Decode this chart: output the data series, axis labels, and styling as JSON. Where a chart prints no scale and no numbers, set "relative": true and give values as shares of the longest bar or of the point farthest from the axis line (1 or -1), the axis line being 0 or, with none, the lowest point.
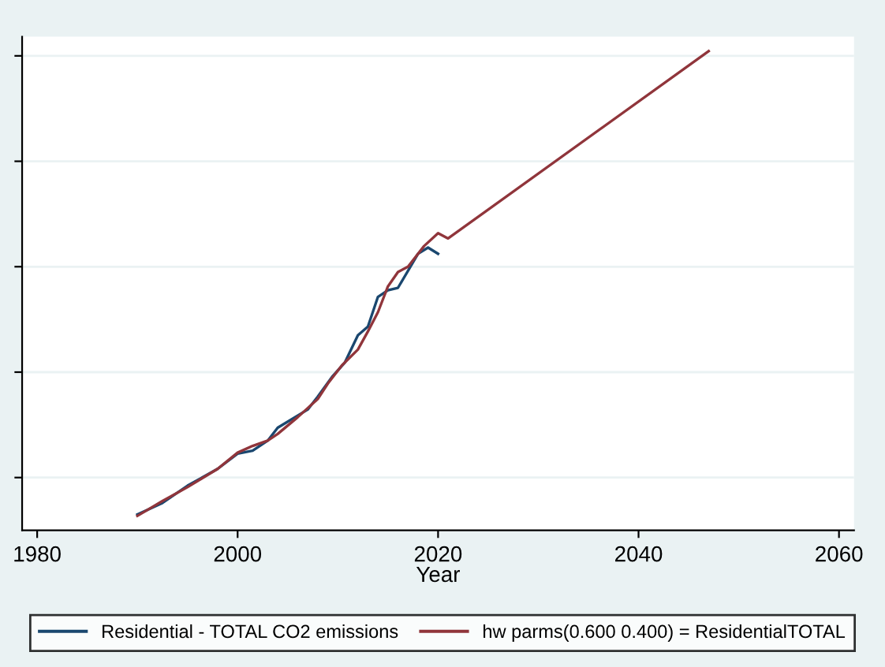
{
  "chart_data": {
    "type": "line",
    "relative": true,
    "xlabel": "Year",
    "xlim": [
      1978.5,
      2061.5
    ],
    "xticks": [
      1980,
      2000,
      2020,
      2040,
      2060
    ],
    "grid": "y",
    "legend": "bottom",
    "line_style": "solid",
    "marker": "none",
    "series": [
      {
        "name": "Residential - TOTAL CO2 emissions",
        "color": "#1a476f",
        "x": [
          1990,
          1992.5,
          1995,
          1998,
          2000,
          2001.5,
          2003,
          2004,
          2007,
          2008,
          2009.5,
          2010.7,
          2012,
          2013,
          2014,
          2015,
          2016,
          2018,
          2019,
          2020
        ],
        "values": [
          0.033,
          0.057,
          0.093,
          0.128,
          0.16,
          0.166,
          0.187,
          0.214,
          0.252,
          0.279,
          0.322,
          0.35,
          0.407,
          0.425,
          0.487,
          0.501,
          0.506,
          0.577,
          0.59,
          0.577
        ]
      },
      {
        "name": "hw parms(0.600 0.400) = ResidentialTOTAL",
        "color": "#90353b",
        "x": [
          1990,
          1992.5,
          1995,
          1998,
          2000,
          2001.5,
          2003,
          2004,
          2006,
          2008,
          2009,
          2010.4,
          2012,
          2013,
          2014,
          2015,
          2016,
          2017,
          2018.6,
          2020,
          2021,
          2047
        ],
        "values": [
          0.03,
          0.061,
          0.09,
          0.128,
          0.162,
          0.176,
          0.187,
          0.201,
          0.236,
          0.274,
          0.306,
          0.344,
          0.377,
          0.415,
          0.455,
          0.509,
          0.539,
          0.55,
          0.593,
          0.62,
          0.609,
          1.0
        ]
      }
    ]
  }
}
